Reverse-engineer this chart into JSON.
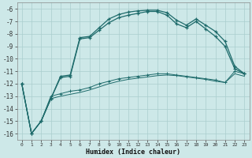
{
  "xlabel": "Humidex (Indice chaleur)",
  "bg_color": "#cde8e8",
  "grid_color": "#aacece",
  "line_color": "#1e6b6b",
  "xlim": [
    -0.5,
    23.5
  ],
  "ylim": [
    -16.5,
    -5.5
  ],
  "yticks": [
    -16,
    -15,
    -14,
    -13,
    -12,
    -11,
    -10,
    -9,
    -8,
    -7,
    -6
  ],
  "xticks": [
    0,
    1,
    2,
    3,
    4,
    5,
    6,
    7,
    8,
    9,
    10,
    11,
    12,
    13,
    14,
    15,
    16,
    17,
    18,
    19,
    20,
    21,
    22,
    23
  ],
  "line1_x": [
    0,
    1,
    2,
    3,
    4,
    5,
    6,
    7,
    8,
    9,
    10,
    11,
    12,
    13,
    14,
    15,
    16,
    17,
    18,
    19,
    20,
    21,
    22,
    23
  ],
  "line1_y": [
    -12,
    -16,
    -15,
    -13.2,
    -11.4,
    -11.3,
    -8.3,
    -8.2,
    -7.5,
    -6.8,
    -6.45,
    -6.25,
    -6.15,
    -6.1,
    -6.1,
    -6.3,
    -6.9,
    -7.3,
    -6.8,
    -7.3,
    -7.8,
    -8.6,
    -10.6,
    -11.2
  ],
  "line2_x": [
    0,
    1,
    2,
    3,
    4,
    5,
    6,
    7,
    8,
    9,
    10,
    11,
    12,
    13,
    14,
    15,
    16,
    17,
    18,
    19,
    20,
    21,
    22,
    23
  ],
  "line2_y": [
    -12,
    -16,
    -15,
    -13.2,
    -11.5,
    -11.4,
    -8.4,
    -8.3,
    -7.7,
    -7.1,
    -6.7,
    -6.5,
    -6.35,
    -6.2,
    -6.2,
    -6.5,
    -7.2,
    -7.5,
    -7.0,
    -7.6,
    -8.2,
    -9.0,
    -10.8,
    -11.2
  ],
  "line3_x": [
    0,
    1,
    2,
    3,
    4,
    5,
    6,
    7,
    8,
    9,
    10,
    11,
    12,
    13,
    14,
    15,
    16,
    17,
    18,
    19,
    20,
    21,
    22,
    23
  ],
  "line3_y": [
    -12,
    -16,
    -15,
    -13.0,
    -12.8,
    -12.6,
    -12.5,
    -12.3,
    -12.0,
    -11.8,
    -11.6,
    -11.5,
    -11.4,
    -11.3,
    -11.2,
    -11.2,
    -11.3,
    -11.4,
    -11.5,
    -11.6,
    -11.7,
    -11.9,
    -11.0,
    -11.2
  ],
  "line4_x": [
    0,
    1,
    2,
    3,
    4,
    5,
    6,
    7,
    8,
    9,
    10,
    11,
    12,
    13,
    14,
    15,
    16,
    17,
    18,
    19,
    20,
    21,
    22,
    23
  ],
  "line4_y": [
    -12,
    -16,
    -15,
    -13.2,
    -13.0,
    -12.85,
    -12.7,
    -12.5,
    -12.25,
    -12.0,
    -11.8,
    -11.65,
    -11.55,
    -11.45,
    -11.35,
    -11.3,
    -11.35,
    -11.45,
    -11.55,
    -11.65,
    -11.8,
    -11.9,
    -11.2,
    -11.4
  ]
}
